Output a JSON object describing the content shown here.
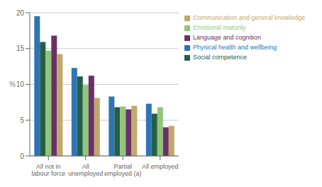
{
  "chart_data": {
    "type": "bar",
    "categories": [
      "All not in labour force",
      "All unemployed",
      "Partial employed (a)",
      "All employed"
    ],
    "series": [
      {
        "name": "Physical health and wellbeing",
        "color": "#2E75B6",
        "values": [
          19.5,
          12.3,
          8.3,
          7.3
        ]
      },
      {
        "name": "Social competence",
        "color": "#255E48",
        "values": [
          15.9,
          11.1,
          6.8,
          5.9
        ]
      },
      {
        "name": "Emotional maturity",
        "color": "#92C47A",
        "values": [
          14.7,
          9.9,
          6.9,
          6.8
        ]
      },
      {
        "name": "Language and cognition",
        "color": "#6B3068",
        "values": [
          16.8,
          11.2,
          6.5,
          4.0
        ]
      },
      {
        "name": "Communication and general knowledge",
        "color": "#BFA86A",
        "values": [
          14.2,
          8.1,
          7.0,
          4.2
        ]
      }
    ],
    "ylim": [
      0,
      20
    ],
    "yticks": [
      0,
      5,
      10,
      15,
      20
    ],
    "ylabel": "%",
    "grid": true,
    "legend": "right"
  }
}
